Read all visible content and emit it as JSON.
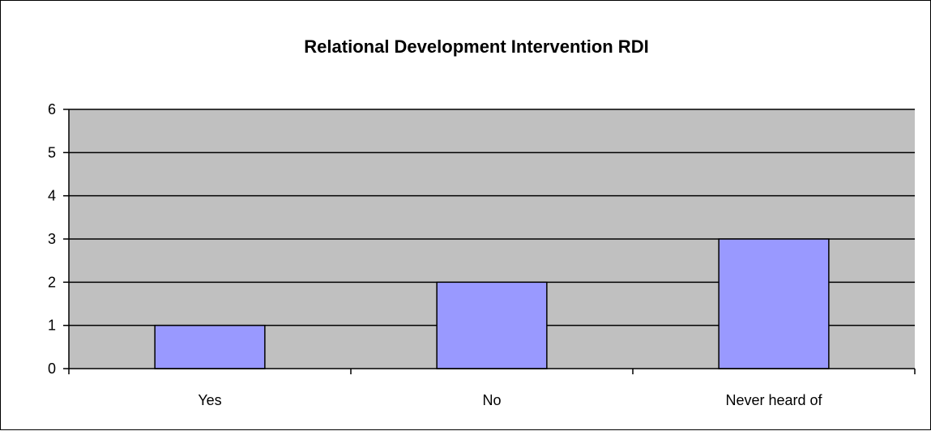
{
  "chart_data": {
    "type": "bar",
    "title": "Relational Development Intervention RDI",
    "categories": [
      "Yes",
      "No",
      "Never heard of"
    ],
    "values": [
      1,
      2,
      3
    ],
    "xlabel": "",
    "ylabel": "",
    "ylim": [
      0,
      6
    ],
    "yticks": [
      "0",
      "1",
      "2",
      "3",
      "4",
      "5",
      "6"
    ],
    "grid": true,
    "legend": "none",
    "colors": {
      "bar_fill": "#9999ff",
      "bar_stroke": "#000000",
      "plot_background": "#c0c0c0",
      "gridline": "#000000"
    }
  }
}
